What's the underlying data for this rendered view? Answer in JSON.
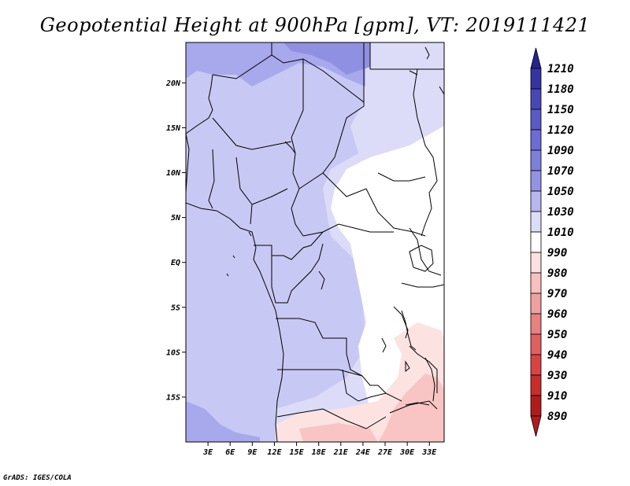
{
  "title": "Geopotential Height at 900hPa [gpm], VT: 2019111421",
  "credit": "GrADS: IGES/COLA",
  "map": {
    "lon_range": [
      0,
      35
    ],
    "lat_range": [
      -20,
      24.5
    ],
    "lat_ticks": [
      "20N",
      "15N",
      "10N",
      "5N",
      "EQ",
      "5S",
      "10S",
      "15S"
    ],
    "lon_ticks": [
      "3E",
      "6E",
      "9E",
      "12E",
      "15E",
      "18E",
      "21E",
      "24E",
      "27E",
      "30E",
      "33E"
    ],
    "variable": "geopotential height",
    "level": "900hPa",
    "units": "gpm"
  },
  "colorbar": {
    "levels": [
      "1210",
      "1180",
      "1150",
      "1120",
      "1090",
      "1070",
      "1050",
      "1030",
      "1010",
      "990",
      "980",
      "970",
      "960",
      "950",
      "940",
      "930",
      "910",
      "890"
    ],
    "colors": [
      "#24248f",
      "#3434a4",
      "#4747b8",
      "#5959c8",
      "#6c6cd4",
      "#7e7edc",
      "#9393e4",
      "#b6b6f0",
      "#dcdcf8",
      "#ffffff",
      "#fde0e0",
      "#f8c0c0",
      "#f0a0a0",
      "#e88080",
      "#e06060",
      "#d84444",
      "#c82c2c",
      "#b01c1c"
    ]
  }
}
